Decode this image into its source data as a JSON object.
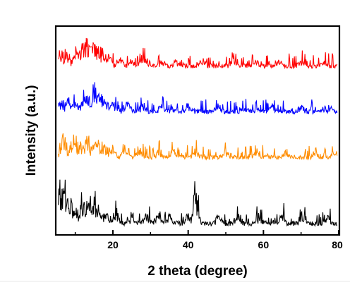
{
  "chart_data": {
    "type": "line",
    "title": "",
    "xlabel": "2 theta (degree)",
    "ylabel": "Intensity (a.u.)",
    "xlim": [
      5,
      80
    ],
    "ylim": [
      0,
      1
    ],
    "x_ticks": [
      20,
      40,
      60,
      80
    ],
    "x_tick_labels": [
      "20",
      "40",
      "60",
      "80"
    ],
    "y_ticks_visible": false,
    "grid": false,
    "legend": "none",
    "series": [
      {
        "color": "#ff0000",
        "baseline": 0.8,
        "peaks": [
          [
            6,
            0.05
          ],
          [
            8,
            0.07
          ],
          [
            10,
            0.08
          ],
          [
            11,
            0.09
          ],
          [
            12,
            0.1
          ],
          [
            13,
            0.13
          ],
          [
            14,
            0.11
          ],
          [
            15,
            0.1
          ],
          [
            16,
            0.09
          ],
          [
            17,
            0.08
          ],
          [
            18,
            0.07
          ],
          [
            19,
            0.06
          ],
          [
            22,
            0.04
          ],
          [
            25,
            0.03
          ],
          [
            28,
            0.05
          ],
          [
            33,
            0.03
          ],
          [
            37,
            0.03
          ],
          [
            44,
            0.03
          ],
          [
            52,
            0.03
          ],
          [
            58,
            0.03
          ],
          [
            64,
            0.03
          ],
          [
            70,
            0.02
          ],
          [
            76,
            0.02
          ]
        ],
        "noise": 0.035
      },
      {
        "color": "#0000ff",
        "baseline": 0.58,
        "peaks": [
          [
            6,
            0.05
          ],
          [
            8,
            0.07
          ],
          [
            10,
            0.06
          ],
          [
            12,
            0.08
          ],
          [
            13,
            0.09
          ],
          [
            14,
            0.1
          ],
          [
            15,
            0.14
          ],
          [
            16,
            0.09
          ],
          [
            17,
            0.08
          ],
          [
            18,
            0.06
          ],
          [
            20,
            0.05
          ],
          [
            24,
            0.04
          ],
          [
            28,
            0.04
          ],
          [
            33,
            0.03
          ],
          [
            40,
            0.03
          ],
          [
            48,
            0.03
          ],
          [
            55,
            0.03
          ],
          [
            62,
            0.03
          ],
          [
            70,
            0.03
          ],
          [
            78,
            0.02
          ]
        ],
        "noise": 0.035
      },
      {
        "color": "#ff8c00",
        "baseline": 0.36,
        "peaks": [
          [
            7,
            0.12
          ],
          [
            9,
            0.09
          ],
          [
            10,
            0.07
          ],
          [
            12,
            0.08
          ],
          [
            13,
            0.11
          ],
          [
            15,
            0.1
          ],
          [
            16,
            0.08
          ],
          [
            18,
            0.07
          ],
          [
            20,
            0.05
          ],
          [
            23,
            0.04
          ],
          [
            27,
            0.04
          ],
          [
            32,
            0.03
          ],
          [
            36,
            0.03
          ],
          [
            42,
            0.03
          ],
          [
            50,
            0.03
          ],
          [
            58,
            0.03
          ],
          [
            66,
            0.03
          ],
          [
            74,
            0.02
          ],
          [
            79,
            0.03
          ]
        ],
        "noise": 0.035
      },
      {
        "color": "#000000",
        "baseline": 0.04,
        "peaks": [
          [
            6,
            0.22
          ],
          [
            7,
            0.19
          ],
          [
            8,
            0.12
          ],
          [
            9,
            0.1
          ],
          [
            10,
            0.08
          ],
          [
            12,
            0.1
          ],
          [
            13,
            0.14
          ],
          [
            14,
            0.13
          ],
          [
            15,
            0.12
          ],
          [
            16,
            0.09
          ],
          [
            18,
            0.07
          ],
          [
            21,
            0.05
          ],
          [
            25,
            0.04
          ],
          [
            29,
            0.04
          ],
          [
            32,
            0.06
          ],
          [
            35,
            0.04
          ],
          [
            40,
            0.04
          ],
          [
            42,
            0.17
          ],
          [
            48,
            0.04
          ],
          [
            53,
            0.03
          ],
          [
            59,
            0.03
          ],
          [
            65,
            0.04
          ],
          [
            71,
            0.03
          ],
          [
            77,
            0.03
          ]
        ],
        "noise": 0.04
      }
    ]
  }
}
